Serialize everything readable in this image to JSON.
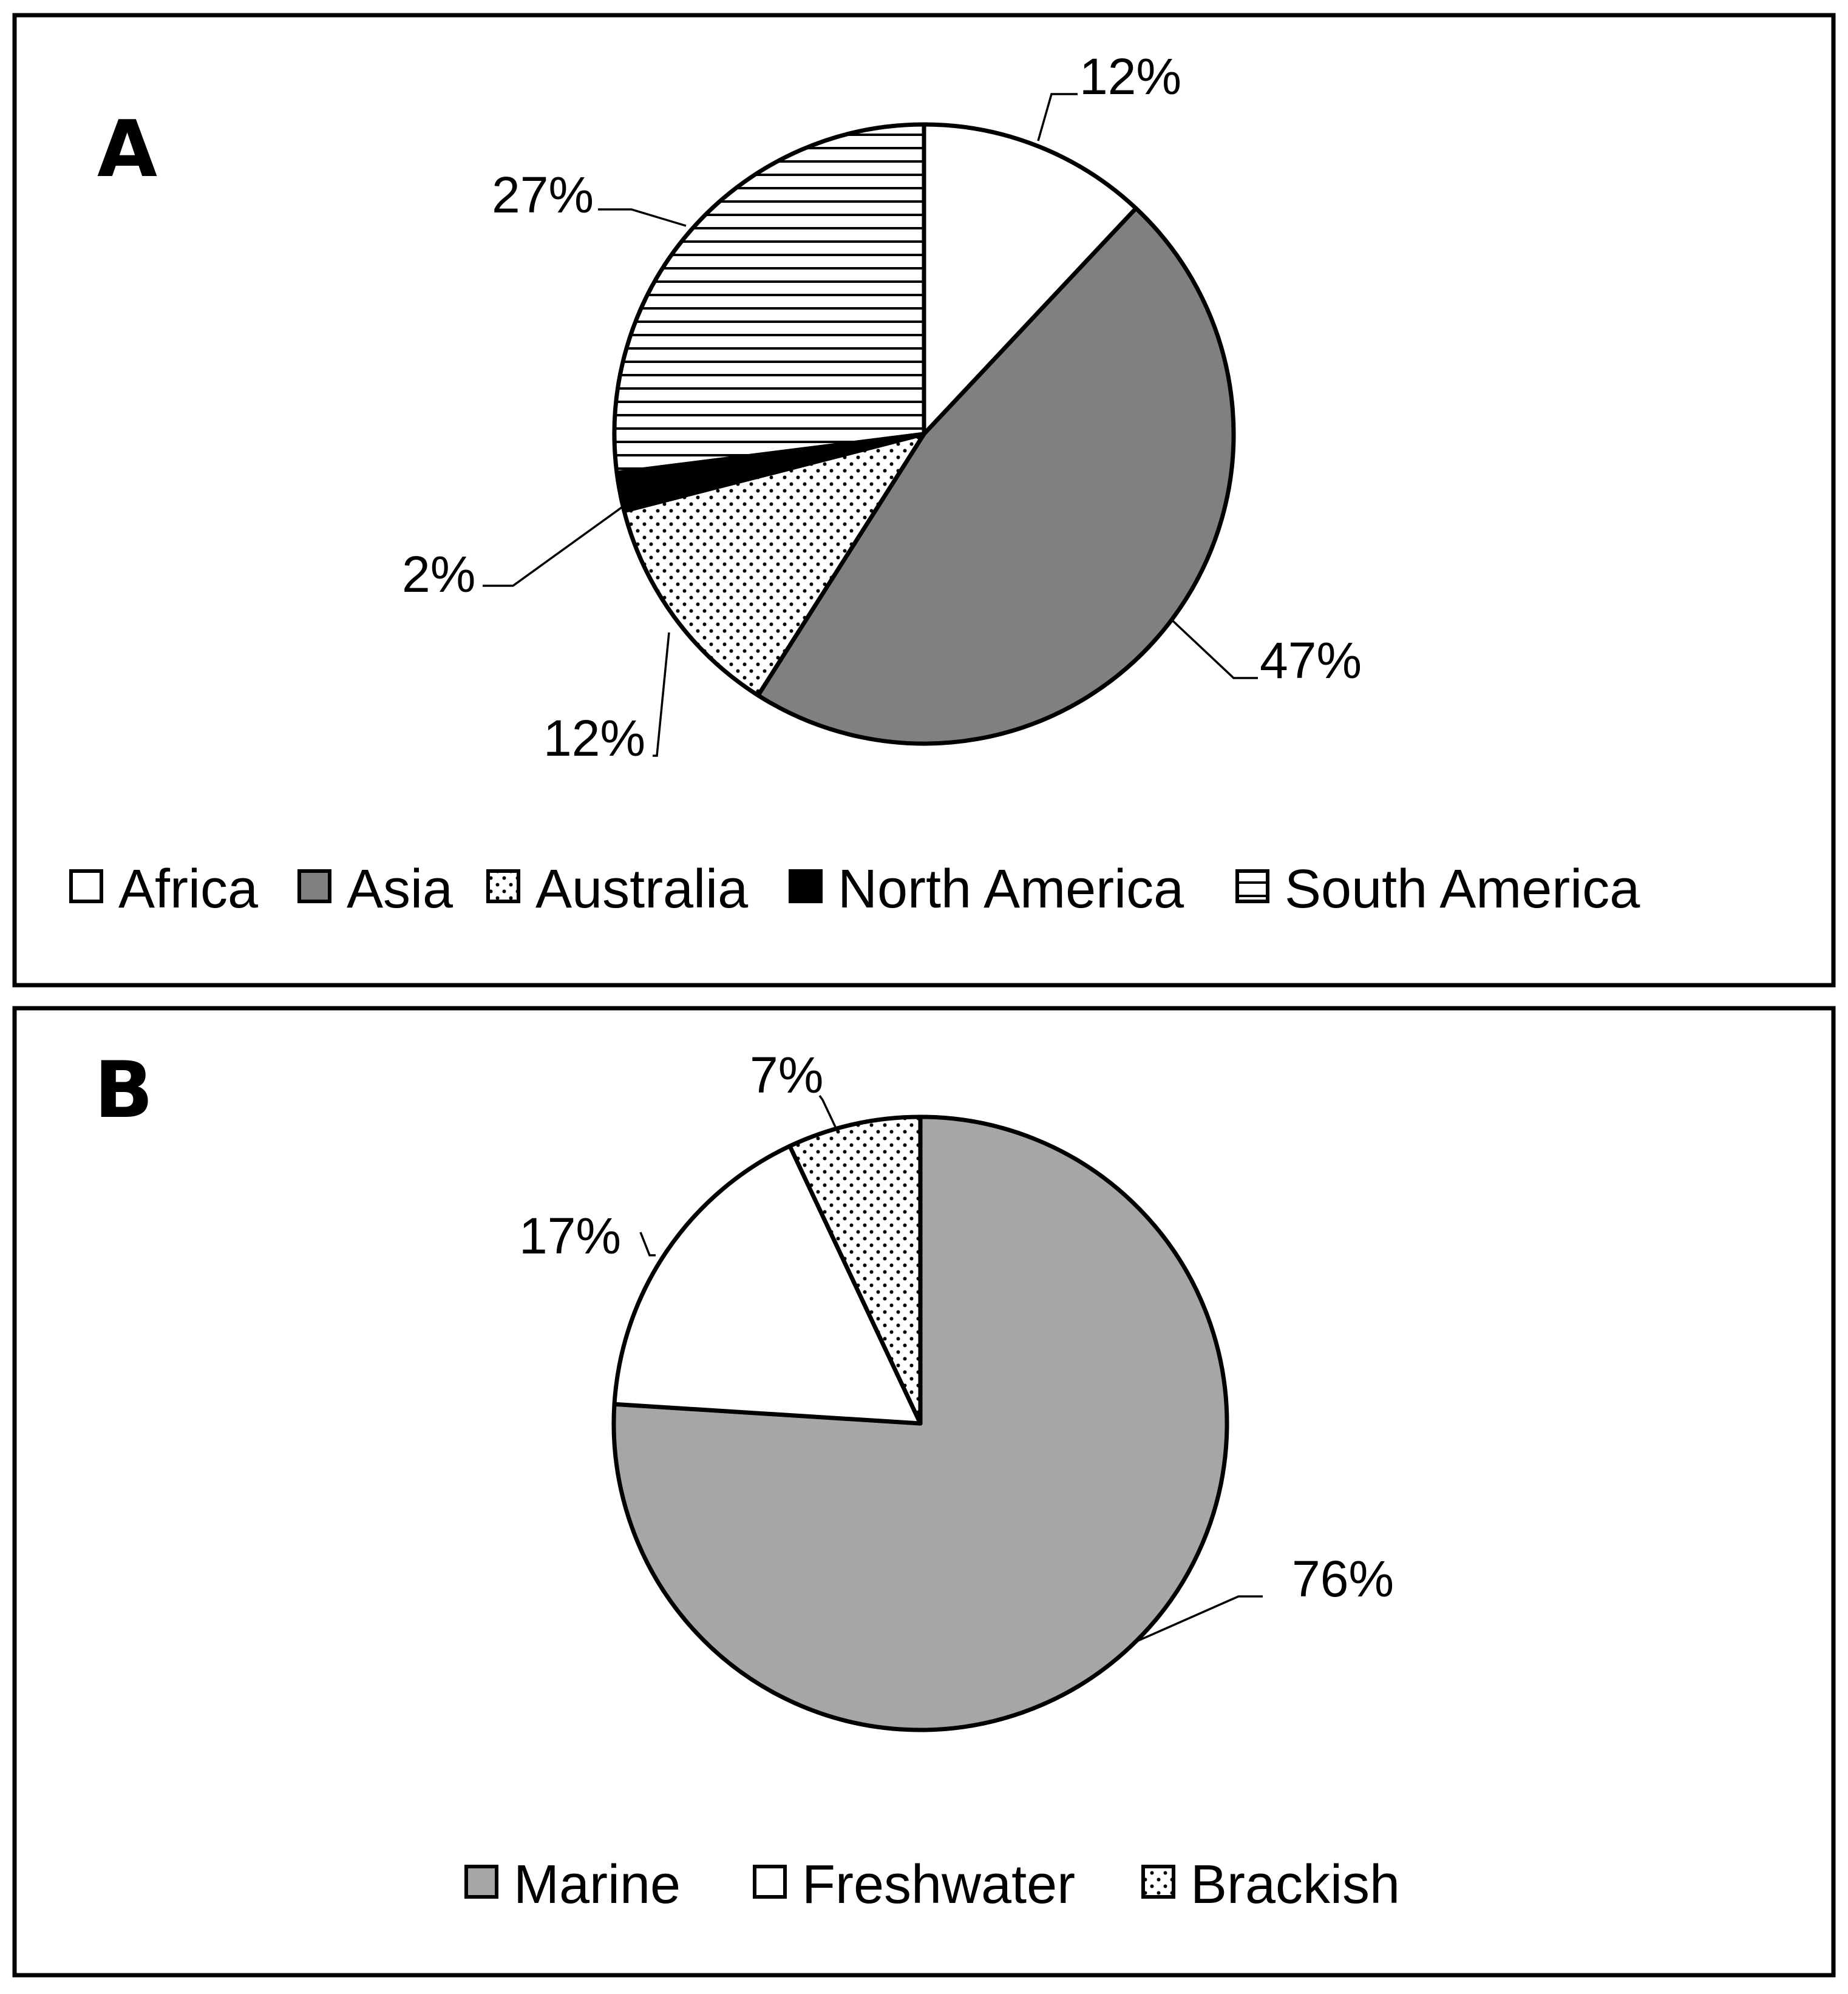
{
  "colors": {
    "frame": "#000000",
    "background": "#ffffff",
    "Asia": "#808080",
    "Marine": "#a6a6a6",
    "North America": "#000000"
  },
  "chart_data": [
    {
      "type": "pie",
      "panel": "A",
      "categories": [
        "Africa",
        "Asia",
        "Australia",
        "North America",
        "South America"
      ],
      "values": [
        12,
        47,
        12,
        2,
        27
      ],
      "value_labels": [
        "12%",
        "47%",
        "12%",
        "2%",
        "27%"
      ],
      "fills": [
        "white",
        "gray #808080",
        "dotted",
        "black",
        "horizontal stripes"
      ],
      "start": "12 o'clock, clockwise",
      "legend": "bottom"
    },
    {
      "type": "pie",
      "panel": "B",
      "categories": [
        "Marine",
        "Freshwater",
        "Brackish"
      ],
      "values": [
        76,
        17,
        7
      ],
      "value_labels": [
        "76%",
        "17%",
        "7%"
      ],
      "fills": [
        "gray #a6a6a6",
        "white",
        "dotted"
      ],
      "start": "12 o'clock, clockwise",
      "legend": "bottom"
    }
  ]
}
